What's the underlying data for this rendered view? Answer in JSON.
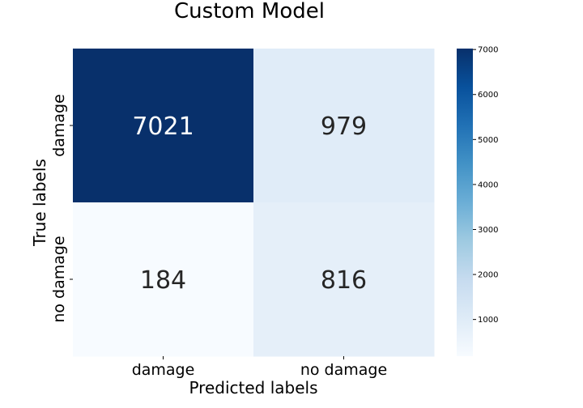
{
  "chart_data": {
    "type": "heatmap",
    "title": "Custom Model",
    "xlabel": "Predicted labels",
    "ylabel": "True labels",
    "x_categories": [
      "damage",
      "no damage"
    ],
    "y_categories": [
      "damage",
      "no damage"
    ],
    "values": [
      [
        7021,
        979
      ],
      [
        184,
        816
      ]
    ],
    "colormap": "Blues",
    "colorbar": {
      "range": [
        184,
        7021
      ],
      "ticks": [
        1000,
        2000,
        3000,
        4000,
        5000,
        6000,
        7000
      ]
    }
  }
}
